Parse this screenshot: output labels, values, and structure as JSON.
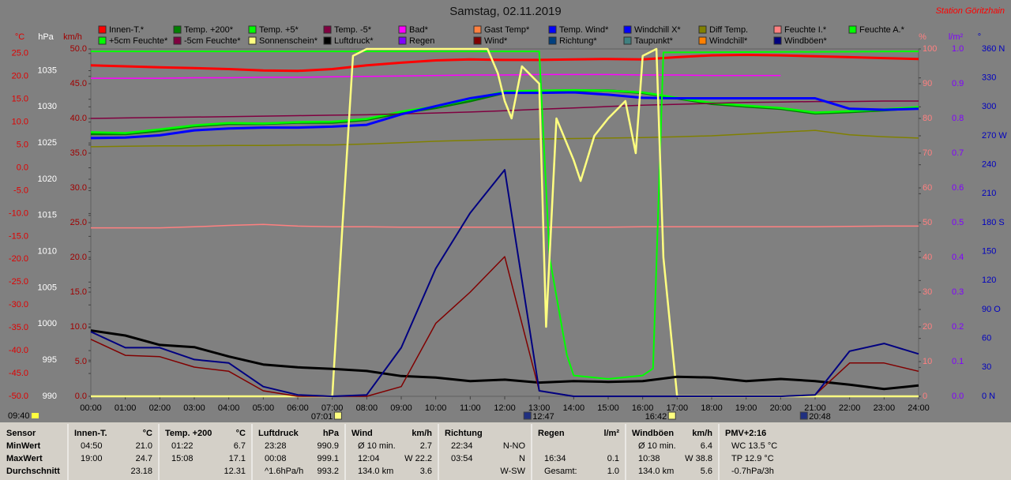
{
  "chart_data": {
    "type": "line",
    "title": "Samstag, 02.11.2019",
    "station": "Station Göritzhain",
    "x": [
      0,
      1,
      2,
      3,
      4,
      5,
      6,
      7,
      8,
      9,
      10,
      11,
      12,
      13,
      14,
      15,
      16,
      17,
      18,
      19,
      20,
      21,
      22,
      23,
      24
    ],
    "xlim": [
      0,
      24
    ],
    "xticks": [
      {
        "value": 0,
        "label": "00:00"
      },
      {
        "value": 1,
        "label": "01:00"
      },
      {
        "value": 2,
        "label": "02:00"
      },
      {
        "value": 3,
        "label": "03:00"
      },
      {
        "value": 4,
        "label": "04:00"
      },
      {
        "value": 5,
        "label": "05:00"
      },
      {
        "value": 6,
        "label": "06:00"
      },
      {
        "value": 7,
        "label": "07:00"
      },
      {
        "value": 8,
        "label": "08:00"
      },
      {
        "value": 9,
        "label": "09:00"
      },
      {
        "value": 10,
        "label": "10:00"
      },
      {
        "value": 11,
        "label": "11:00"
      },
      {
        "value": 12,
        "label": "12:00"
      },
      {
        "value": 13,
        "label": "13:00"
      },
      {
        "value": 14,
        "label": "14:00"
      },
      {
        "value": 15,
        "label": "15:00"
      },
      {
        "value": 16,
        "label": "16:00"
      },
      {
        "value": 17,
        "label": "17:00"
      },
      {
        "value": 18,
        "label": "18:00"
      },
      {
        "value": 19,
        "label": "19:00"
      },
      {
        "value": 20,
        "label": "20:00"
      },
      {
        "value": 21,
        "label": "21:00"
      },
      {
        "value": 22,
        "label": "22:00"
      },
      {
        "value": 23,
        "label": "23:00"
      },
      {
        "value": 24,
        "label": "24:00"
      }
    ],
    "axes": [
      {
        "label": "°C",
        "color": "#e00000",
        "lim": [
          -50,
          26
        ],
        "ticks": [
          {
            "value": 25,
            "label": "25.0"
          },
          {
            "value": 20,
            "label": "20.0"
          },
          {
            "value": 15,
            "label": "15.0"
          },
          {
            "value": 10,
            "label": "10.0"
          },
          {
            "value": 5,
            "label": "5.0"
          },
          {
            "value": 0,
            "label": "0.0"
          },
          {
            "value": -5,
            "label": "-5.0"
          },
          {
            "value": -10,
            "label": "-10.0"
          },
          {
            "value": -15,
            "label": "-15.0"
          },
          {
            "value": -20,
            "label": "-20.0"
          },
          {
            "value": -25,
            "label": "-25.0"
          },
          {
            "value": -30,
            "label": "-30.0"
          },
          {
            "value": -35,
            "label": "-35.0"
          },
          {
            "value": -40,
            "label": "-40.0"
          },
          {
            "value": -45,
            "label": "-45.0"
          },
          {
            "value": -50,
            "label": "-50.0"
          }
        ]
      },
      {
        "label": "hPa",
        "color": "#ffffff",
        "lim": [
          990,
          1038
        ],
        "ticks": [
          1035,
          1030,
          1025,
          1020,
          1015,
          1010,
          1005,
          1000,
          995,
          990
        ]
      },
      {
        "label": "km/h",
        "color": "#a00000",
        "lim": [
          0,
          50
        ],
        "ticks": [
          {
            "value": 50,
            "label": "50.0"
          },
          {
            "value": 45,
            "label": "45.0"
          },
          {
            "value": 40,
            "label": "40.0"
          },
          {
            "value": 35,
            "label": "35.0"
          },
          {
            "value": 30,
            "label": "30.0"
          },
          {
            "value": 25,
            "label": "25.0"
          },
          {
            "value": 20,
            "label": "20.0"
          },
          {
            "value": 15,
            "label": "15.0"
          },
          {
            "value": 10,
            "label": "10.0"
          },
          {
            "value": 5,
            "label": "5.0"
          },
          {
            "value": 0,
            "label": "0.0"
          }
        ]
      },
      {
        "label": "%",
        "color": "#ff8080",
        "lim": [
          0,
          100
        ],
        "ticks": [
          100,
          90,
          80,
          70,
          60,
          50,
          40,
          30,
          20,
          10,
          0
        ]
      },
      {
        "label": "l/m²",
        "color": "#8000ff",
        "lim": [
          0,
          1
        ],
        "ticks": [
          {
            "value": 1,
            "label": "1.0"
          },
          0.9,
          0.8,
          0.7,
          0.6,
          0.5,
          0.4,
          0.3,
          0.2,
          0.1,
          {
            "value": 0,
            "label": "0.0"
          }
        ]
      },
      {
        "label": "°",
        "color": "#0000c0",
        "lim": [
          0,
          360
        ],
        "ticks": [
          {
            "value": 360,
            "label": "360 N"
          },
          330,
          300,
          {
            "value": 270,
            "label": "270 W"
          },
          240,
          210,
          {
            "value": 180,
            "label": "180 S"
          },
          150,
          120,
          {
            "value": 90,
            "label": "90 O"
          },
          60,
          30,
          {
            "value": 0,
            "label": "0 N"
          }
        ]
      }
    ],
    "series": [
      {
        "name": "Innen-T.*",
        "color": "#ff0000",
        "axis": 0,
        "values": [
          22.4,
          22.2,
          22.0,
          21.8,
          21.6,
          21.3,
          21.2,
          21.6,
          22.4,
          23.0,
          23.5,
          23.7,
          23.6,
          23.6,
          23.7,
          23.8,
          23.7,
          24.2,
          24.6,
          24.7,
          24.6,
          24.4,
          24.2,
          24.0,
          23.8
        ]
      },
      {
        "name": "Temp. +200*",
        "color": "#008000",
        "axis": 0,
        "values": [
          7.4,
          7.4,
          8.1,
          9.1,
          9.6,
          9.6,
          9.9,
          9.9,
          10.5,
          12.0,
          13.1,
          14.6,
          16.4,
          16.5,
          16.9,
          16.9,
          16.4,
          15.2,
          14.0,
          13.4,
          12.9,
          11.9,
          12.2,
          12.6,
          13.1
        ]
      },
      {
        "name": "Temp. +5*",
        "color": "#00ff00",
        "axis": 0,
        "values": [
          7.8,
          7.6,
          8.4,
          9.3,
          9.8,
          9.7,
          10.0,
          10.1,
          10.7,
          12.3,
          13.4,
          15.0,
          16.7,
          16.9,
          17.0,
          16.9,
          16.5,
          15.3,
          14.2,
          13.6,
          13.1,
          12.1,
          12.4,
          12.8,
          13.3
        ]
      },
      {
        "name": "Temp. -5*",
        "color": "#800040",
        "axis": 0,
        "values": [
          10.8,
          10.9,
          11.0,
          11.1,
          11.2,
          11.3,
          11.4,
          11.5,
          11.6,
          11.8,
          12.0,
          12.2,
          12.5,
          12.8,
          13.1,
          13.4,
          13.7,
          13.9,
          14.1,
          14.3,
          14.4,
          14.5,
          14.5,
          14.6,
          14.6
        ]
      },
      {
        "name": "Bad*",
        "color": "#ff00ff",
        "axis": 0,
        "values": [
          19.6,
          19.6,
          19.6,
          19.7,
          19.7,
          19.8,
          19.8,
          19.9,
          20.0,
          20.1,
          20.2,
          20.3,
          20.3,
          20.4,
          20.4,
          20.4,
          20.3,
          20.3,
          20.2,
          20.2,
          20.2,
          null,
          null,
          null,
          null
        ]
      },
      {
        "name": "Gast Temp*",
        "color": "#ff8040"
      },
      {
        "name": "Temp. Wind*",
        "color": "#0000ff"
      },
      {
        "name": "Windchill X*",
        "color": "#0000ff",
        "axis": 0,
        "values": [
          6.5,
          6.6,
          7.1,
          8.2,
          8.6,
          8.8,
          8.8,
          9.0,
          9.4,
          11.7,
          13.5,
          15.2,
          16.4,
          16.4,
          16.5,
          16.0,
          15.3,
          15.2,
          15.2,
          15.2,
          15.2,
          15.2,
          12.9,
          12.7,
          12.9
        ]
      },
      {
        "name": "Diff Temp.",
        "color": "#808000",
        "axis": 0,
        "values": [
          4.6,
          4.7,
          4.8,
          4.8,
          4.9,
          4.9,
          5.0,
          5.0,
          5.2,
          5.5,
          5.8,
          6.0,
          6.2,
          6.3,
          6.4,
          6.5,
          6.6,
          6.8,
          7.0,
          7.4,
          7.8,
          8.2,
          7.2,
          6.8,
          6.5
        ]
      },
      {
        "name": "Feuchte I.*",
        "color": "#ff8080",
        "axis": 3,
        "values": [
          48.5,
          48.5,
          48.5,
          48.8,
          49.2,
          49.5,
          49.0,
          48.8,
          48.8,
          48.7,
          48.7,
          48.7,
          48.7,
          48.7,
          48.7,
          48.7,
          48.8,
          48.8,
          48.8,
          48.8,
          48.8,
          48.8,
          48.9,
          49.0,
          49.0
        ]
      },
      {
        "name": "Feuchte A.*",
        "color": "#00ff00",
        "axis": 3,
        "x": [
          0,
          13,
          13.3,
          13.8,
          14,
          15,
          16,
          16.3,
          16.6,
          24
        ],
        "values": [
          99.3,
          99.3,
          40,
          12,
          6,
          5,
          6,
          8,
          99,
          99.3
        ]
      },
      {
        "name": "+5cm Feuchte*",
        "color": "#00ff00"
      },
      {
        "name": "-5cm Feuchte*",
        "color": "#800040"
      },
      {
        "name": "Sonnenschein*",
        "color": "#ffff80",
        "axis": 3,
        "x": [
          0,
          7,
          7.3,
          7.6,
          8,
          11.5,
          11.8,
          12,
          12.2,
          12.5,
          13,
          13.2,
          13.5,
          14,
          14.2,
          14.6,
          15,
          15.5,
          15.8,
          16,
          16.4,
          16.6,
          17,
          24
        ],
        "values": [
          0,
          0,
          50,
          98,
          100,
          100,
          93,
          85,
          80,
          95,
          90,
          20,
          80,
          68,
          62,
          75,
          80,
          85,
          70,
          98,
          100,
          40,
          0,
          0
        ]
      },
      {
        "name": "Luftdruck*",
        "color": "#000000",
        "axis": 1,
        "values": [
          999.1,
          998.4,
          997.1,
          996.8,
          995.5,
          994.4,
          994.0,
          993.8,
          993.5,
          992.8,
          992.6,
          992.1,
          992.3,
          991.9,
          992.1,
          992.0,
          992.1,
          992.7,
          992.6,
          992.1,
          992.4,
          992.1,
          991.6,
          991.0,
          991.5
        ]
      },
      {
        "name": "Regen",
        "color": "#8000ff"
      },
      {
        "name": "Wind*",
        "color": "#800000",
        "axis": 2,
        "values": [
          8.2,
          5.9,
          5.7,
          4.2,
          3.6,
          0.8,
          0,
          0,
          0,
          1.4,
          10.5,
          15.0,
          20.1,
          0.8,
          0,
          0,
          0,
          0,
          0,
          0,
          0,
          0.2,
          4.8,
          4.8,
          3.6
        ]
      },
      {
        "name": "Richtung*",
        "color": "#004080"
      },
      {
        "name": "Taupunkt*",
        "color": "#408080"
      },
      {
        "name": "Windchill*",
        "color": "#ff8000"
      },
      {
        "name": "Windböen*",
        "color": "#000080",
        "axis": 2,
        "values": [
          9.3,
          7.0,
          7.0,
          5.3,
          4.8,
          1.4,
          0.2,
          0,
          0.2,
          7.0,
          18.4,
          26.4,
          32.6,
          0.8,
          0,
          0,
          0,
          0,
          0,
          0,
          0,
          0.2,
          6.5,
          7.6,
          6.1
        ]
      }
    ],
    "sun_events": [
      "07:01",
      "12:47",
      "16:42",
      "20:48"
    ],
    "time": "09:40"
  },
  "table": {
    "row_labels": [
      "Sensor",
      "MinWert",
      "MaxWert",
      "Durchschnitt"
    ],
    "columns": [
      {
        "header": "Innen-T.",
        "unit": "°C",
        "rows": [
          {
            "left": "04:50",
            "right": "21.0"
          },
          {
            "left": "19:00",
            "right": "24.7"
          },
          {
            "right": "23.18"
          }
        ]
      },
      {
        "header": "Temp. +200",
        "unit": "°C",
        "rows": [
          {
            "left": "01:22",
            "right": "6.7"
          },
          {
            "left": "15:08",
            "right": "17.1"
          },
          {
            "right": "12.31"
          }
        ]
      },
      {
        "header": "Luftdruck",
        "unit": "hPa",
        "rows": [
          {
            "left": "23:28",
            "right": "990.9"
          },
          {
            "left": "00:08",
            "right": "999.1"
          },
          {
            "left": "^1.6hPa/h",
            "right": "993.2"
          }
        ]
      },
      {
        "header": "Wind",
        "unit": "km/h",
        "rows": [
          {
            "left": "Ø 10 min.",
            "right": "2.7"
          },
          {
            "left": "12:04",
            "right": "W 22.2"
          },
          {
            "left": "134.0 km",
            "right": "3.6"
          }
        ]
      },
      {
        "header": "Richtung",
        "rows": [
          {
            "left": "22:34",
            "right": "N-NO"
          },
          {
            "left": "03:54",
            "right": "N"
          },
          {
            "right": "W-SW"
          }
        ]
      },
      {
        "header": "Regen",
        "unit": "l/m²",
        "rows": [
          {},
          {
            "left": "16:34",
            "right": "0.1"
          },
          {
            "left": "Gesamt:",
            "right": "1.0"
          }
        ]
      },
      {
        "header": "Windböen",
        "unit": "km/h",
        "rows": [
          {
            "left": "Ø 10 min.",
            "right": "6.4"
          },
          {
            "left": "10:38",
            "right": "W 38.8"
          },
          {
            "left": "134.0 km",
            "right": "5.6"
          }
        ]
      },
      {
        "header": "PMV+2:16",
        "rows": [
          {
            "left": "WC 13.5 °C"
          },
          {
            "left": "TP 12.9 °C"
          },
          {
            "left": "-0.7hPa/3h"
          }
        ]
      }
    ]
  }
}
